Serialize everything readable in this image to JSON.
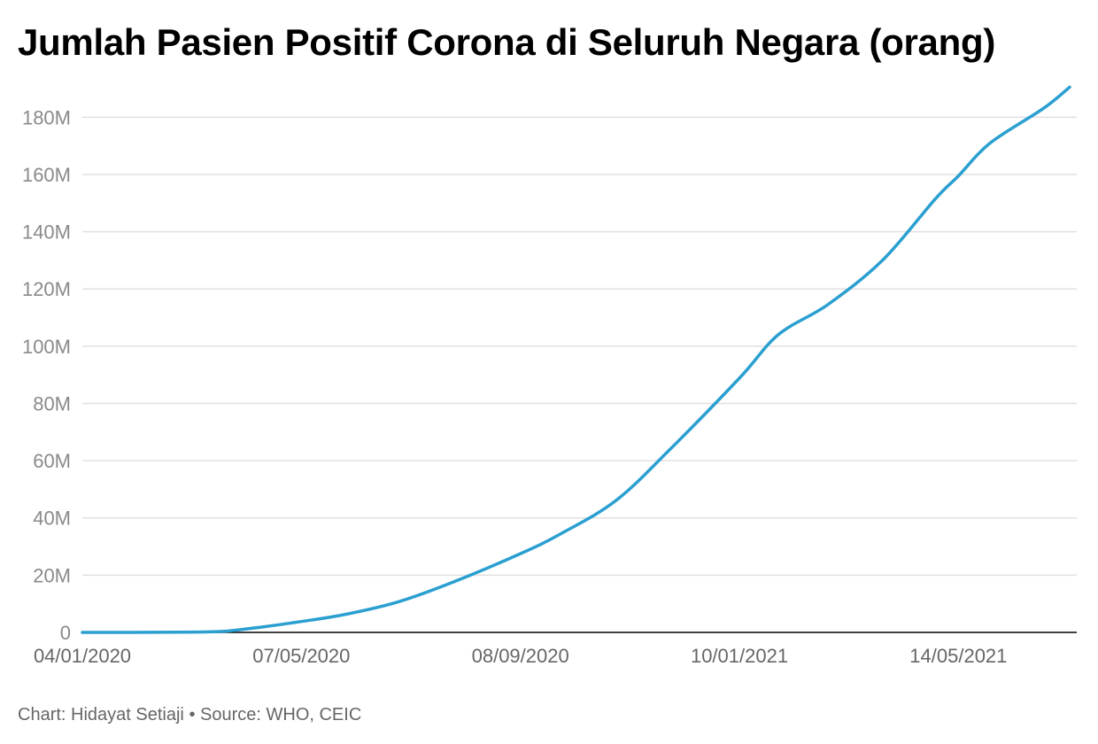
{
  "title": "Jumlah Pasien Positif Corona di Seluruh Negara (orang)",
  "footer": {
    "chart_credit": "Chart: Hidayat Setiaji",
    "separator": "•",
    "source": "Source: WHO, CEIC"
  },
  "colors": {
    "line": "#2a9fd0",
    "grid": "#e0e0e0",
    "axis": "#000000",
    "tick_text": "#8a8a8a",
    "x_tick_text": "#666666"
  },
  "chart_data": {
    "type": "line",
    "title": "Jumlah Pasien Positif Corona di Seluruh Negara (orang)",
    "xlabel": "",
    "ylabel": "",
    "x_axis_type": "date",
    "xlim": [
      "2020-01-04",
      "2021-07-20"
    ],
    "ylim": [
      0,
      190
    ],
    "y_unit": "M",
    "y_ticks": [
      0,
      20,
      40,
      60,
      80,
      100,
      120,
      140,
      160,
      180
    ],
    "y_tick_labels": [
      "0",
      "20M",
      "40M",
      "60M",
      "80M",
      "100M",
      "120M",
      "140M",
      "160M",
      "180M"
    ],
    "x_ticks": [
      "2020-01-04",
      "2020-05-07",
      "2020-09-08",
      "2021-01-10",
      "2021-05-14"
    ],
    "x_tick_labels": [
      "04/01/2020",
      "07/05/2020",
      "08/09/2020",
      "10/01/2021",
      "14/05/2021"
    ],
    "grid": true,
    "legend": "none",
    "series": [
      {
        "values_unit": "million",
        "x": [
          "2020-01-04",
          "2020-02-01",
          "2020-03-01",
          "2020-03-22",
          "2020-04-01",
          "2020-04-15",
          "2020-05-07",
          "2020-06-01",
          "2020-07-01",
          "2020-08-01",
          "2020-09-08",
          "2020-10-01",
          "2020-11-01",
          "2020-12-01",
          "2021-01-10",
          "2021-02-01",
          "2021-03-01",
          "2021-04-01",
          "2021-05-01",
          "2021-05-14",
          "2021-06-01",
          "2021-07-01",
          "2021-07-16"
        ],
        "y": [
          0.0,
          0.01,
          0.09,
          0.3,
          0.85,
          1.9,
          3.8,
          6.3,
          10.7,
          17.6,
          27.5,
          34.5,
          46.0,
          63.5,
          88.8,
          104.0,
          114.5,
          130.0,
          151.5,
          159.5,
          171.0,
          183.0,
          190.5
        ]
      }
    ]
  }
}
